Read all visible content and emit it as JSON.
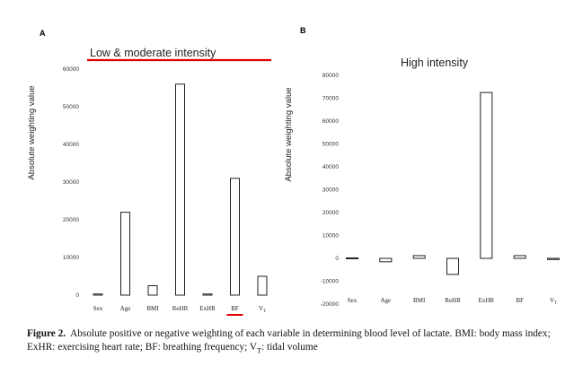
{
  "chart_data": [
    {
      "type": "bar",
      "panel": "A",
      "title": "Low & moderate intensity",
      "ylabel": "Absolute weighting value",
      "xlabel": "",
      "ylim": [
        0,
        60000
      ],
      "yticks": [
        0,
        10000,
        20000,
        30000,
        40000,
        50000,
        60000
      ],
      "categories": [
        "Sex",
        "Age",
        "BMI",
        "ReHR",
        "ExHR",
        "BF",
        "V_T"
      ],
      "values": [
        300,
        22000,
        2500,
        56000,
        300,
        31000,
        5000
      ],
      "highlighted_category": "BF",
      "grid": false,
      "accent_color": "#e00000"
    },
    {
      "type": "bar",
      "panel": "B",
      "title": "High intensity",
      "ylabel": "Absolute weighting value",
      "xlabel": "",
      "ylim": [
        -20000,
        80000
      ],
      "yticks": [
        -20000,
        -10000,
        0,
        10000,
        20000,
        30000,
        40000,
        50000,
        60000,
        70000,
        80000
      ],
      "categories": [
        "Sex",
        "Age",
        "BMI",
        "ReHR",
        "ExHR",
        "BF",
        "V_T"
      ],
      "values": [
        200,
        -1500,
        1200,
        -7000,
        72500,
        1200,
        -500
      ],
      "grid": false
    }
  ],
  "caption": {
    "label": "Figure 2.",
    "text": "Absolute positive or negative weighting of each variable in determining blood level of lactate. BMI: body mass index; ExHR: exercising heart rate; BF: breathing frequency; V",
    "text_sub": "T",
    "text_end": ": tidal volume"
  }
}
